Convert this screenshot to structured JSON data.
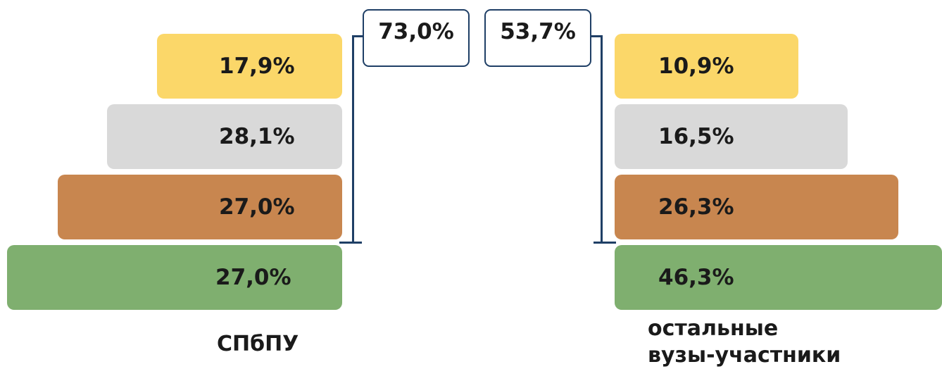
{
  "chart_data": {
    "type": "bar",
    "layout": "mirrored pyramid",
    "groups": [
      {
        "name": "СПбПУ",
        "values_percent": [
          17.9,
          28.1,
          27.0,
          27.0
        ],
        "labels": [
          "17,9%",
          "28,1%",
          "27,0%",
          "27,0%"
        ],
        "bracket_total": "73,0%"
      },
      {
        "name": "остальные вузы-участники",
        "name_lines": [
          "остальные",
          "вузы-участники"
        ],
        "values_percent": [
          10.9,
          16.5,
          26.3,
          46.3
        ],
        "labels": [
          "10,9%",
          "16,5%",
          "26,3%",
          "46,3%"
        ],
        "bracket_total": "53,7%"
      }
    ],
    "series_colors": [
      "#fbd769",
      "#d9d9d9",
      "#c8864f",
      "#7faf6f"
    ],
    "bracket_color": "#1f3f66"
  }
}
